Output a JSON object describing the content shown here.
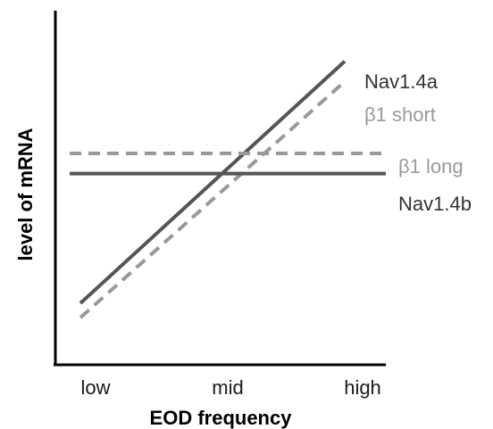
{
  "chart_data": {
    "type": "line",
    "title": "",
    "xlabel": "EOD frequency",
    "ylabel": "level of mRNA",
    "x_categories": [
      "low",
      "mid",
      "high"
    ],
    "xlim": [
      0,
      2
    ],
    "ylim": [
      0,
      100
    ],
    "grid": false,
    "legend": "inline labels at right end of lines",
    "series": [
      {
        "name": "Nav1.4a",
        "x": [
          0,
          2
        ],
        "y": [
          13,
          97
        ],
        "color": "#555555",
        "dash": false
      },
      {
        "name": "β1 short",
        "x": [
          0,
          2
        ],
        "y": [
          8,
          90
        ],
        "color": "#999999",
        "dash": true
      },
      {
        "name": "β1 long",
        "x": [
          0,
          2
        ],
        "y": [
          65,
          65
        ],
        "color": "#999999",
        "dash": true
      },
      {
        "name": "Nav1.4b",
        "x": [
          0,
          2
        ],
        "y": [
          58,
          58
        ],
        "color": "#555555",
        "dash": false
      }
    ]
  }
}
